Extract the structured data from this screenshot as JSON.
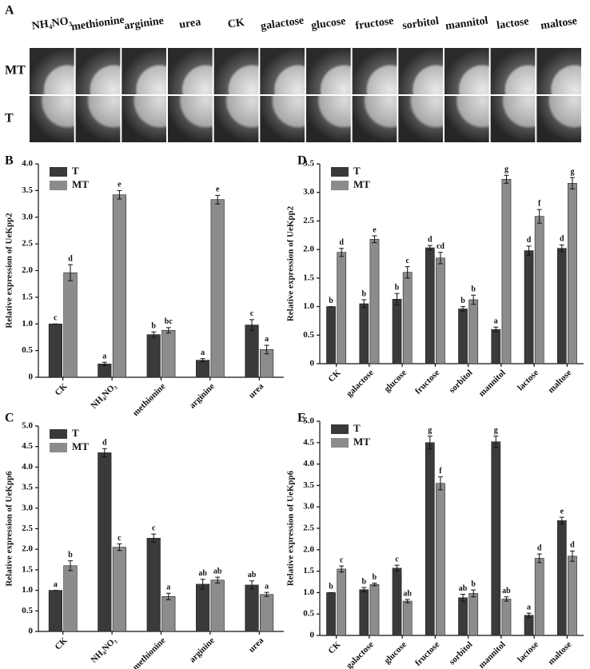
{
  "figure": {
    "panel": "A",
    "columns": [
      "NH₄NO₃",
      "methionine",
      "arginine",
      "urea",
      "CK",
      "galactose",
      "glucose",
      "fructose",
      "sorbitol",
      "mannitol",
      "lactose",
      "maltose"
    ],
    "rows": [
      "MT",
      "T"
    ]
  },
  "chart_data": [
    {
      "type": "bar",
      "panel": "B",
      "ylabel": "Relative expression of UeKpp2",
      "categories": [
        "CK",
        "NH₄NO₃",
        "methionine",
        "arginine",
        "urea"
      ],
      "series": [
        {
          "name": "T",
          "color": "#3a3a3a",
          "values": [
            1.0,
            0.25,
            0.8,
            0.32,
            0.98
          ],
          "errors": [
            0,
            0.03,
            0.05,
            0.03,
            0.1
          ],
          "letters": [
            "c",
            "a",
            "b",
            "a",
            "c"
          ]
        },
        {
          "name": "MT",
          "color": "#8c8c8c",
          "values": [
            1.96,
            3.42,
            0.88,
            3.33,
            0.52
          ],
          "errors": [
            0.15,
            0.08,
            0.05,
            0.08,
            0.08
          ],
          "letters": [
            "d",
            "e",
            "bc",
            "e",
            "a"
          ]
        }
      ],
      "ylim": [
        0,
        4
      ],
      "yticks": [
        0,
        0.5,
        {
          "value": 1,
          "label": "1.0"
        },
        1.5,
        {
          "value": 2,
          "label": "2.0"
        },
        2.5,
        {
          "value": 3,
          "label": "3.0"
        },
        3.5,
        {
          "value": 4,
          "label": "4.0"
        }
      ],
      "legend": "upper left"
    },
    {
      "type": "bar",
      "panel": "C",
      "ylabel": "Relative expression of UeKpp6",
      "categories": [
        "CK",
        "NH₄NO₃",
        "methionine",
        "arginine",
        "urea"
      ],
      "series": [
        {
          "name": "T",
          "color": "#3a3a3a",
          "values": [
            1.0,
            4.35,
            2.27,
            1.15,
            1.13
          ],
          "errors": [
            0,
            0.1,
            0.1,
            0.12,
            0.1
          ],
          "letters": [
            "a",
            "d",
            "c",
            "ab",
            "ab"
          ]
        },
        {
          "name": "MT",
          "color": "#8c8c8c",
          "values": [
            1.6,
            2.05,
            0.85,
            1.25,
            0.9
          ],
          "errors": [
            0.12,
            0.08,
            0.08,
            0.07,
            0.05
          ],
          "letters": [
            "b",
            "c",
            "a",
            "ab",
            "a"
          ]
        }
      ],
      "ylim": [
        0,
        5
      ],
      "yticks": [
        0,
        0.5,
        {
          "value": 1,
          "label": "1.0"
        },
        1.5,
        {
          "value": 2,
          "label": "2.0"
        },
        2.5,
        {
          "value": 3,
          "label": "3.0"
        },
        3.5,
        {
          "value": 4,
          "label": "4.0"
        },
        4.5,
        {
          "value": 5,
          "label": "5.0"
        }
      ],
      "legend": "upper left"
    },
    {
      "type": "bar",
      "panel": "D",
      "ylabel": "Relative expression of UeKpp2",
      "categories": [
        "CK",
        "galactose",
        "glucose",
        "fructose",
        "sorbitol",
        "mannitol",
        "lactose",
        "maltose"
      ],
      "series": [
        {
          "name": "T",
          "color": "#3a3a3a",
          "values": [
            1.0,
            1.05,
            1.13,
            2.03,
            0.96,
            0.6,
            1.98,
            2.02
          ],
          "errors": [
            0,
            0.07,
            0.1,
            0.04,
            0.04,
            0.04,
            0.08,
            0.06
          ],
          "letters": [
            "b",
            "b",
            "b",
            "d",
            "b",
            "a",
            "d",
            "d"
          ]
        },
        {
          "name": "MT",
          "color": "#8c8c8c",
          "values": [
            1.95,
            2.18,
            1.6,
            1.85,
            1.12,
            3.23,
            2.58,
            3.16
          ],
          "errors": [
            0.07,
            0.06,
            0.1,
            0.1,
            0.08,
            0.07,
            0.12,
            0.1
          ],
          "letters": [
            "d",
            "e",
            "c",
            "cd",
            "b",
            "g",
            "f",
            "g"
          ]
        }
      ],
      "ylim": [
        0,
        3.5
      ],
      "yticks": [
        0,
        0.5,
        {
          "value": 1,
          "label": "1.0"
        },
        1.5,
        {
          "value": 2,
          "label": "2.0"
        },
        2.5,
        {
          "value": 3,
          "label": "3.0"
        },
        3.5
      ],
      "legend": "upper left"
    },
    {
      "type": "bar",
      "panel": "E",
      "ylabel": "Relative expression of UeKpp6",
      "categories": [
        "CK",
        "galactose",
        "glucose",
        "fructose",
        "sorbitol",
        "mannitol",
        "lactose",
        "maltose"
      ],
      "series": [
        {
          "name": "T",
          "color": "#3a3a3a",
          "values": [
            1.0,
            1.07,
            1.57,
            4.5,
            0.88,
            4.52,
            0.47,
            2.68
          ],
          "errors": [
            0,
            0.05,
            0.07,
            0.15,
            0.08,
            0.13,
            0.05,
            0.08
          ],
          "letters": [
            "b",
            "b",
            "c",
            "g",
            "ab",
            "g",
            "a",
            "e"
          ]
        },
        {
          "name": "MT",
          "color": "#8c8c8c",
          "values": [
            1.55,
            1.19,
            0.8,
            3.55,
            0.98,
            0.85,
            1.8,
            1.85
          ],
          "errors": [
            0.07,
            0.03,
            0.04,
            0.15,
            0.08,
            0.05,
            0.1,
            0.12
          ],
          "letters": [
            "c",
            "b",
            "ab",
            "f",
            "b",
            "ab",
            "d",
            "d"
          ]
        }
      ],
      "ylim": [
        0,
        5
      ],
      "yticks": [
        0,
        0.5,
        {
          "value": 1,
          "label": "1.0"
        },
        1.5,
        {
          "value": 2,
          "label": "2.0"
        },
        2.5,
        {
          "value": 3,
          "label": "3.0"
        },
        3.5,
        {
          "value": 4,
          "label": "4.0"
        },
        4.5,
        {
          "value": 5,
          "label": "5.0"
        }
      ],
      "legend": "upper left"
    }
  ]
}
